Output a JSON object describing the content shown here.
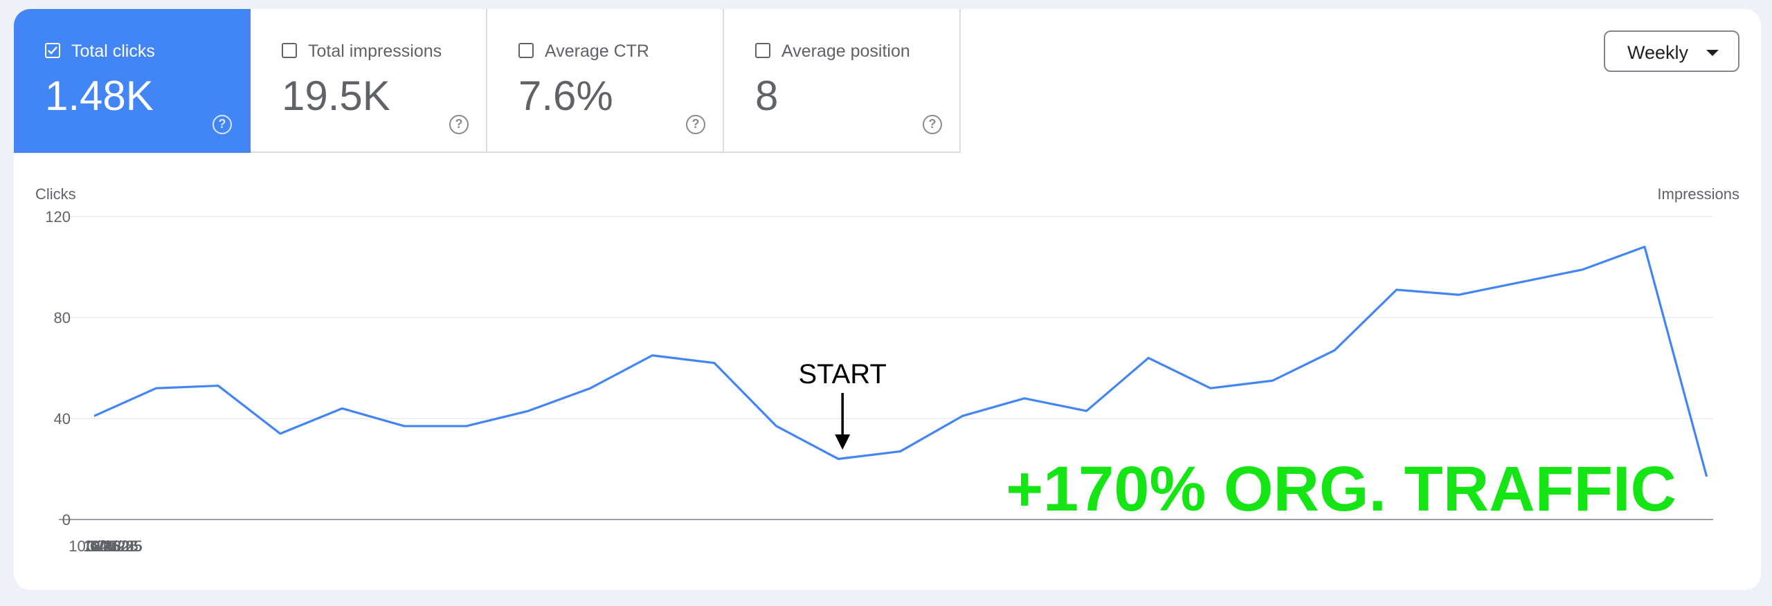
{
  "metrics": [
    {
      "label": "Total clicks",
      "value": "1.48K",
      "checked": true,
      "help": "?"
    },
    {
      "label": "Total impressions",
      "value": "19.5K",
      "checked": false,
      "help": "?"
    },
    {
      "label": "Average CTR",
      "value": "7.6%",
      "checked": false,
      "help": "?"
    },
    {
      "label": "Average position",
      "value": "8",
      "checked": false,
      "help": "?"
    }
  ],
  "period": {
    "label": "Weekly"
  },
  "colors": {
    "accent": "#4285f4",
    "line": "#4285f4",
    "annotation_green": "#15e515"
  },
  "chart_data": {
    "type": "line",
    "title": "",
    "left_axis_label": "Clicks",
    "right_axis_label": "Impressions",
    "ylim": [
      0,
      120
    ],
    "y_ticks": [
      "0",
      "40",
      "80",
      "120"
    ],
    "x_ticks": [
      "10/6/25",
      "10/26/25",
      "11/16/25",
      "12/7/25",
      "12/28/25",
      "1/18/26",
      "2/8/26",
      "3/1/26",
      "3/22/26"
    ],
    "grid": true,
    "legend": "none",
    "series": [
      {
        "x": [
          "10/6/25",
          "10/13/25",
          "10/20/25",
          "10/27/25",
          "11/3/25",
          "11/10/25",
          "11/17/25",
          "11/24/25",
          "12/1/25",
          "12/8/25",
          "12/15/25",
          "12/22/25",
          "12/29/25",
          "1/5/26",
          "1/12/26",
          "1/19/26",
          "1/26/26",
          "2/2/26",
          "2/9/26",
          "2/16/26",
          "2/23/26",
          "3/2/26",
          "3/9/26",
          "3/16/26",
          "3/23/26",
          "3/30/26",
          "4/6/26"
        ],
        "values": [
          41,
          52,
          53,
          34,
          44,
          37,
          37,
          43,
          52,
          65,
          62,
          37,
          24,
          27,
          41,
          48,
          43,
          64,
          52,
          55,
          67,
          91,
          89,
          94,
          99,
          108,
          17
        ]
      }
    ],
    "annotations": [
      {
        "text": "START",
        "at_x": "12/29/25",
        "arrow": "down"
      },
      {
        "text": "+170% ORG. TRAFFIC",
        "placement": "bottom-right",
        "color": "#15e515"
      }
    ]
  }
}
